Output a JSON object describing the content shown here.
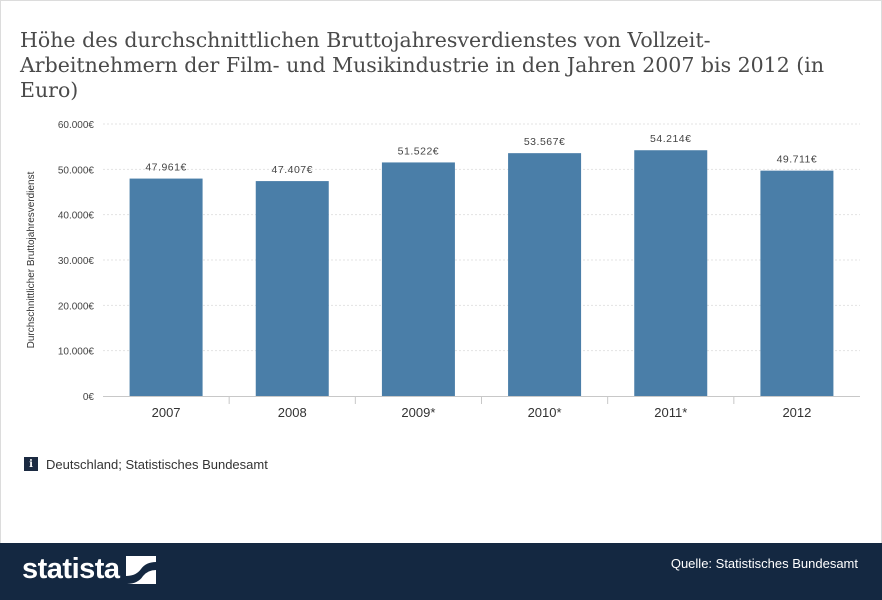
{
  "title": "Höhe des durchschnittlichen Bruttojahresverdienstes von Vollzeit-Arbeitnehmern der Film- und Musikindustrie in den Jahren 2007 bis 2012 (in Euro)",
  "chart_data": {
    "type": "bar",
    "categories": [
      "2007",
      "2008",
      "2009*",
      "2010*",
      "2011*",
      "2012"
    ],
    "values": [
      47961,
      47407,
      51522,
      53567,
      54214,
      49711
    ],
    "value_labels": [
      "47.961€",
      "47.407€",
      "51.522€",
      "53.567€",
      "54.214€",
      "49.711€"
    ],
    "ylabel": "Durchschnittlicher Bruttojahresverdienst",
    "ylim": [
      0,
      60000
    ],
    "yticks": [
      0,
      10000,
      20000,
      30000,
      40000,
      50000,
      60000
    ],
    "ytick_labels": [
      "0€",
      "10.000€",
      "20.000€",
      "30.000€",
      "40.000€",
      "50.000€",
      "60.000€"
    ],
    "grid": true,
    "bar_color": "#4a7ea8"
  },
  "info": {
    "icon": "info-icon",
    "icon_glyph": "i",
    "text": "Deutschland; Statistisches Bundesamt"
  },
  "footer": {
    "brand": "statista",
    "brand_icon": "statista-logo-icon",
    "source": "Quelle: Statistisches Bundesamt",
    "background": "#142841"
  }
}
